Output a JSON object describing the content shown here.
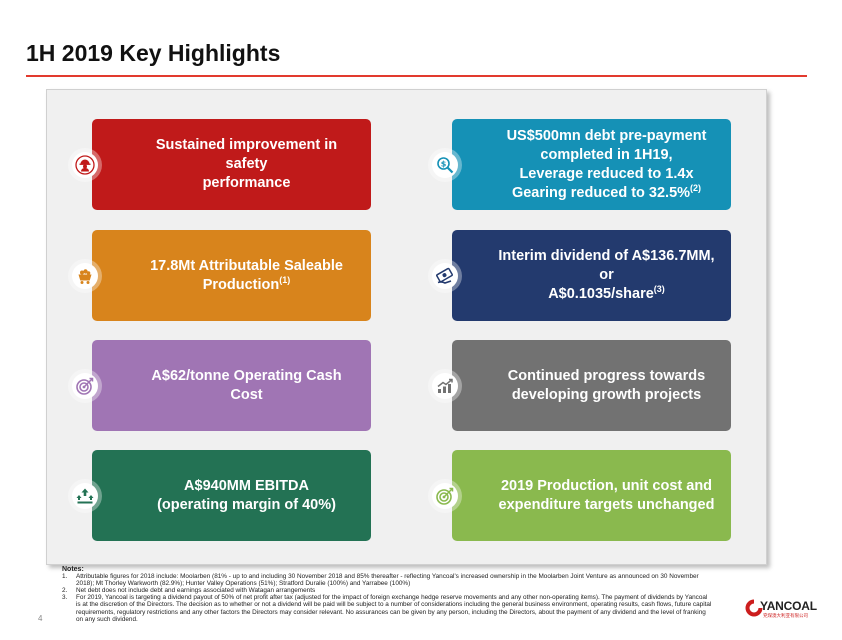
{
  "page": {
    "title": "1H 2019 Key Highlights",
    "page_number": "4"
  },
  "tiles": [
    {
      "lines": [
        "Sustained improvement in safety",
        "performance"
      ],
      "sup": "",
      "color": "#c01a1a",
      "icon": "worker-helmet-icon"
    },
    {
      "lines": [
        "US$500mn debt pre-payment",
        "completed in 1H19,",
        "Leverage reduced to 1.4x",
        "Gearing reduced to 32.5%"
      ],
      "sup": "(2)",
      "color": "#1591b6",
      "icon": "dollar-magnifier-icon"
    },
    {
      "lines": [
        "17.8Mt Attributable Saleable",
        "Production"
      ],
      "sup": "(1)",
      "color": "#d8841c",
      "icon": "coal-cart-icon"
    },
    {
      "lines": [
        "Interim dividend of A$136.7MM, or",
        "A$0.1035/share"
      ],
      "sup": "(3)",
      "color": "#233a6e",
      "icon": "cash-hand-icon"
    },
    {
      "lines": [
        "A$62/tonne Operating Cash Cost"
      ],
      "sup": "",
      "color": "#a075b4",
      "icon": "target-icon"
    },
    {
      "lines": [
        "Continued progress towards",
        "developing growth projects"
      ],
      "sup": "",
      "color": "#727272",
      "icon": "growth-chart-icon"
    },
    {
      "lines": [
        "A$940MM EBITDA",
        "(operating margin of 40%)"
      ],
      "sup": "",
      "color": "#237254",
      "icon": "growth-arrows-icon"
    },
    {
      "lines": [
        "2019 Production, unit cost and",
        "expenditure targets unchanged"
      ],
      "sup": "",
      "color": "#8ab94e",
      "icon": "target-icon"
    }
  ],
  "notes": {
    "heading": "Notes:",
    "items": [
      {
        "num": "1.",
        "text": "Attributable figures for 2018 include: Moolarben (81% - up to and including 30 November 2018 and 85% thereafter - reflecting Yancoal's increased ownership in the Moolarben Joint Venture as announced on 30 November 2018); Mt Thorley Warkworth (82.9%); Hunter Valley Operations (51%); Stratford Duralie (100%) and Yarrabee (100%)"
      },
      {
        "num": "2.",
        "text": "Net debt does not include debt and earnings associated with Watagan arrangements"
      },
      {
        "num": "3.",
        "text": "For 2019, Yancoal is targeting a dividend payout of 50% of net profit after tax (adjusted for the impact of foreign exchange hedge reserve movements and any other non-operating items). The payment of dividends by Yancoal is at the discretion of the Directors. The decision as to whether or not a dividend will be paid will be subject to a number of considerations including the general business environment, operating results, cash flows, future capital requirements, regulatory restrictions and any other factors the Directors may consider relevant. No assurances can be given by any person, including the Directors, about the payment of any dividend and the level of franking on any such dividend."
      }
    ]
  },
  "logo": {
    "name": "YANCOAL",
    "subtitle": "兖煤澳大利亚有限公司"
  }
}
